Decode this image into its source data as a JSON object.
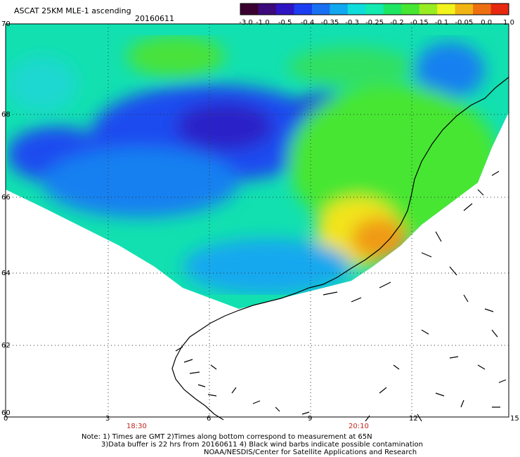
{
  "header": {
    "product": "ASCAT 25KM MLE-1 ascending",
    "date": "20160611"
  },
  "colorbar": {
    "labels": [
      "-3.0",
      "-1.0",
      "-0.5",
      "-0.4",
      "-0.35",
      "-0.3",
      "-0.25",
      "-0.2",
      "-0.15",
      "-0.1",
      "-0.05",
      "0.0",
      "1.0"
    ],
    "colors": [
      "#3a0030",
      "#3c0a7a",
      "#2f14c4",
      "#1b3cf0",
      "#1970f2",
      "#12a8ef",
      "#10dcdc",
      "#12eab0",
      "#1ee663",
      "#46e632",
      "#98ec22",
      "#f2f21c",
      "#f0b414",
      "#ee6e12",
      "#e62810"
    ]
  },
  "axes": {
    "lat_ticks": [
      "70",
      "68",
      "66",
      "64",
      "62",
      "60"
    ],
    "lon_ticks": [
      "0",
      "3",
      "6",
      "9",
      "12",
      "15"
    ],
    "time_labels": [
      "18:30",
      "20:10"
    ]
  },
  "notes": [
    "Note: 1) Times are GMT 2)Times along bottom correspond to measurement at 65N",
    "3)Data buffer is 22 hrs from 20160611 4) Black wind barbs indicate possible contamination",
    "NOAA/NESDIS/Center for Satellite Applications and Research"
  ]
}
